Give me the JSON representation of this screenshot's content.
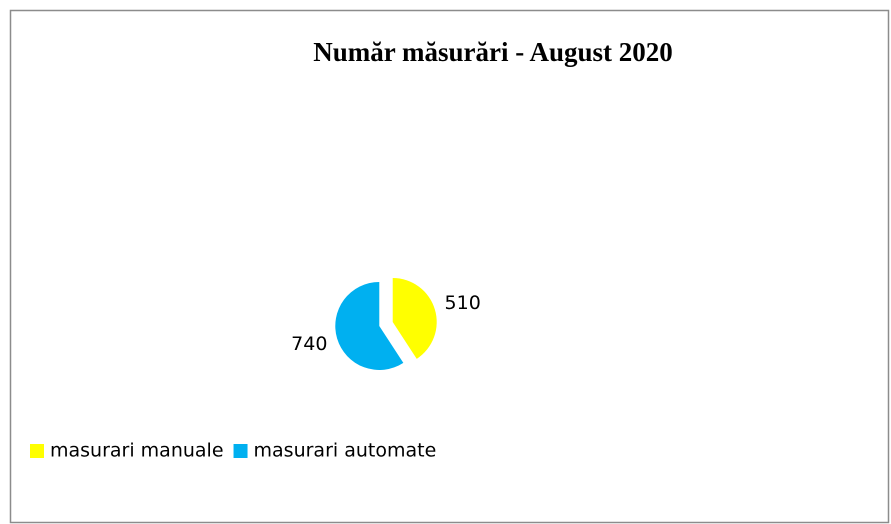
{
  "chart_data": {
    "type": "pie",
    "title": "Număr măsurări - August 2020",
    "categories": [
      "masurari manuale",
      "masurari automate"
    ],
    "values": [
      510,
      740
    ],
    "colors": [
      "#ffff00",
      "#00b0f0"
    ],
    "legend": "bottom-left"
  }
}
